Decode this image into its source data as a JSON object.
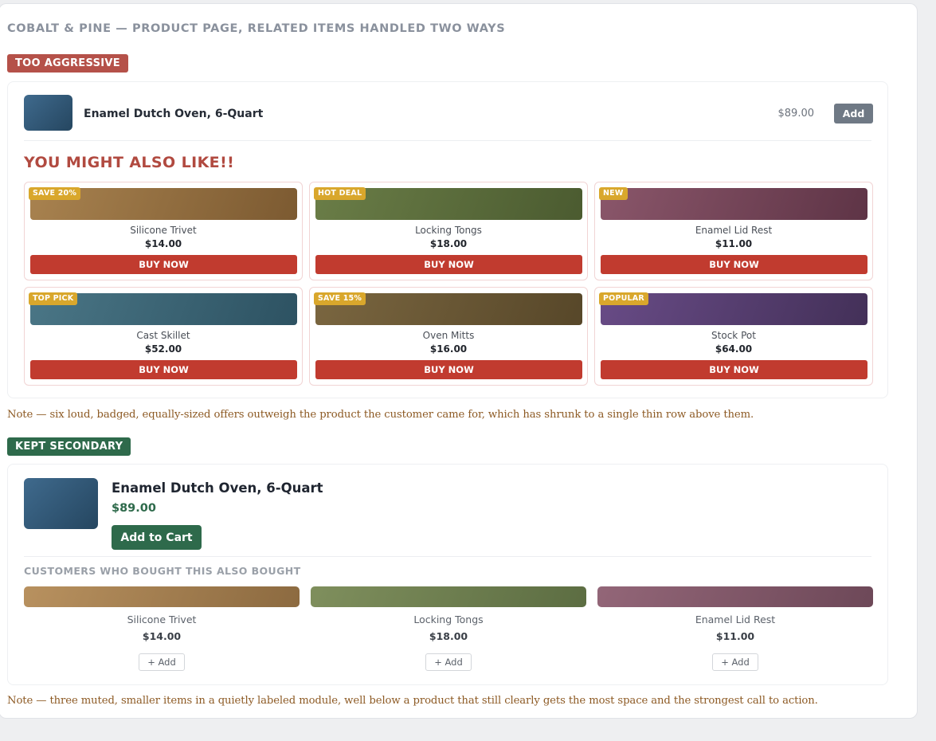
{
  "page": {
    "title": "COBALT & PINE — PRODUCT PAGE, RELATED ITEMS HANDLED TWO WAYS"
  },
  "aggressive": {
    "tag": "TOO AGGRESSIVE",
    "product": {
      "name": "Enamel Dutch Oven, 6-Quart",
      "price": "$89.00",
      "button": "Add"
    },
    "heading": "YOU MIGHT ALSO LIKE!!",
    "offers": [
      {
        "badge": "SAVE 20%",
        "name": "Silicone Trivet",
        "price": "$14.00",
        "button": "BUY NOW",
        "color_from": "#a8824f",
        "color_to": "#7c5a31"
      },
      {
        "badge": "HOT DEAL",
        "name": "Locking Tongs",
        "price": "$18.00",
        "button": "BUY NOW",
        "color_from": "#6a7d47",
        "color_to": "#4b5b30"
      },
      {
        "badge": "NEW",
        "name": "Enamel Lid Rest",
        "price": "$11.00",
        "button": "BUY NOW",
        "color_from": "#8a566a",
        "color_to": "#5e3446"
      },
      {
        "badge": "TOP PICK",
        "name": "Cast Skillet",
        "price": "$52.00",
        "button": "BUY NOW",
        "color_from": "#4a7686",
        "color_to": "#2d5262"
      },
      {
        "badge": "SAVE 15%",
        "name": "Oven Mitts",
        "price": "$16.00",
        "button": "BUY NOW",
        "color_from": "#7a6640",
        "color_to": "#574729"
      },
      {
        "badge": "POPULAR",
        "name": "Stock Pot",
        "price": "$64.00",
        "button": "BUY NOW",
        "color_from": "#684b86",
        "color_to": "#433058"
      }
    ],
    "note": "Note — six loud, badged, equally-sized offers outweigh the product the customer came for, which has shrunk to a single thin row above them."
  },
  "secondary": {
    "tag": "KEPT SECONDARY",
    "product": {
      "name": "Enamel Dutch Oven, 6-Quart",
      "price": "$89.00",
      "button": "Add to Cart"
    },
    "heading": "CUSTOMERS WHO BOUGHT THIS ALSO BOUGHT",
    "items": [
      {
        "name": "Silicone Trivet",
        "price": "$14.00",
        "button": "+ Add",
        "color_from": "#b8915f",
        "color_to": "#8c6a40"
      },
      {
        "name": "Locking Tongs",
        "price": "$18.00",
        "button": "+ Add",
        "color_from": "#7f8f5d",
        "color_to": "#5c6d42"
      },
      {
        "name": "Enamel Lid Rest",
        "price": "$11.00",
        "button": "+ Add",
        "color_from": "#936678",
        "color_to": "#6d4858"
      }
    ],
    "note": "Note — three muted, smaller items in a quietly labeled module, well below a product that still clearly gets the most space and the strongest call to action."
  }
}
